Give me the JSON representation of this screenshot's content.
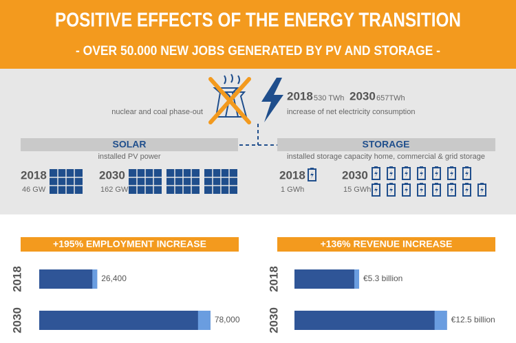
{
  "header": {
    "title": "POSITIVE EFFECTS OF THE ENERGY TRANSITION",
    "subtitle": "- OVER 50.000 NEW JOBS GENERATED BY PV AND STORAGE -"
  },
  "phase_out": "nuclear and coal phase-out",
  "consumption": {
    "items": [
      {
        "year": "2018",
        "amount": "530 TWh"
      },
      {
        "year": "2030",
        "amount": "657TWh"
      }
    ],
    "caption": "increase of net electricity consumption"
  },
  "solar": {
    "title": "SOLAR",
    "caption": "installed PV power",
    "items": [
      {
        "year": "2018",
        "amount": "46 GW"
      },
      {
        "year": "2030",
        "amount": "162 GW"
      }
    ]
  },
  "storage": {
    "title": "STORAGE",
    "caption": "installed storage capacity home, commercial & grid storage",
    "items": [
      {
        "year": "2018",
        "value": 1,
        "value_label": "1 GWh"
      },
      {
        "year": "2030",
        "value": 15,
        "value_label": "15 GWh"
      }
    ]
  },
  "chart_data": [
    {
      "type": "bar",
      "title": "+195% EMPLOYMENT INCREASE",
      "categories": [
        "2018",
        "2030"
      ],
      "values": [
        26400,
        78000
      ],
      "value_labels": [
        "26,400",
        "78,000"
      ],
      "color": "#2f5597",
      "xlim": [
        0,
        100000
      ]
    },
    {
      "type": "bar",
      "title": "+136% REVENUE INCREASE",
      "categories": [
        "2018",
        "2030"
      ],
      "values": [
        5.3,
        12.5
      ],
      "value_labels": [
        "€5.3 billion",
        "€12.5 billion"
      ],
      "color": "#2f5597",
      "xlim": [
        0,
        15
      ]
    }
  ]
}
